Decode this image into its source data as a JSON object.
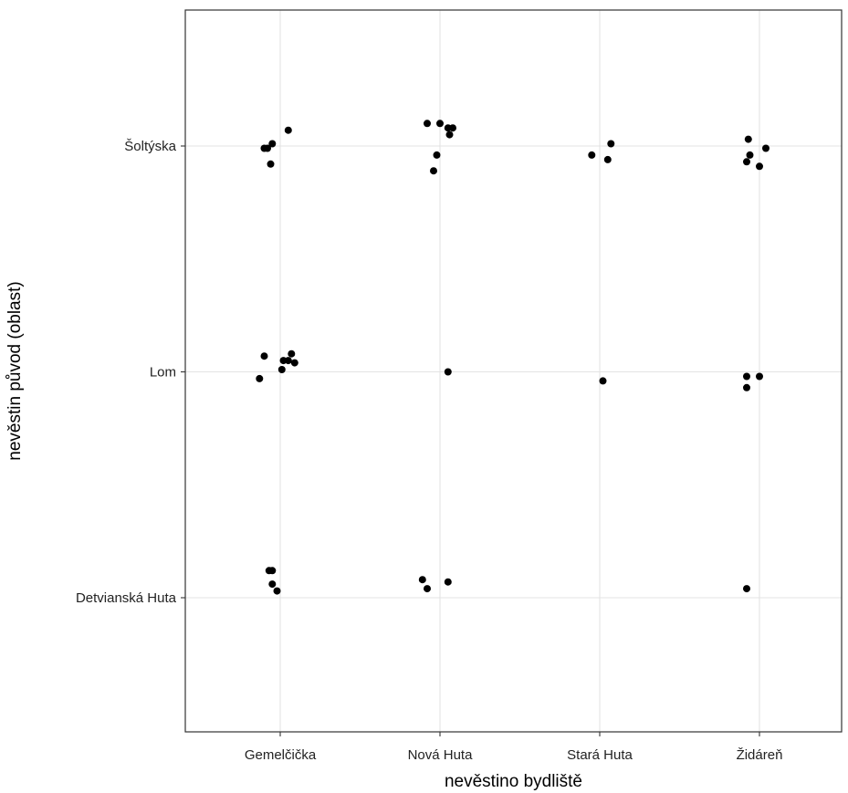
{
  "chart_data": {
    "type": "scatter",
    "title": "",
    "xlabel": "nevěstino bydliště",
    "ylabel": "nevěstin původ (oblast)",
    "x_categories": [
      "Gemelčička",
      "Nová Huta",
      "Stará Huta",
      "Židáreň"
    ],
    "y_categories": [
      "Detvianská Huta",
      "Lom",
      "Šoltýska"
    ],
    "grid": true,
    "legend": "none",
    "jitter": true,
    "point_color": "#000000",
    "points": [
      {
        "x": "Gemelčička",
        "y": "Šoltýska",
        "dx": 0.05,
        "dy": 0.07
      },
      {
        "x": "Gemelčička",
        "y": "Šoltýska",
        "dx": -0.05,
        "dy": 0.01
      },
      {
        "x": "Gemelčička",
        "y": "Šoltýska",
        "dx": -0.08,
        "dy": -0.01
      },
      {
        "x": "Gemelčička",
        "y": "Šoltýska",
        "dx": -0.1,
        "dy": -0.01
      },
      {
        "x": "Gemelčička",
        "y": "Šoltýska",
        "dx": -0.06,
        "dy": -0.08
      },
      {
        "x": "Nová Huta",
        "y": "Šoltýska",
        "dx": -0.08,
        "dy": 0.1
      },
      {
        "x": "Nová Huta",
        "y": "Šoltýska",
        "dx": 0.0,
        "dy": 0.1
      },
      {
        "x": "Nová Huta",
        "y": "Šoltýska",
        "dx": 0.05,
        "dy": 0.08
      },
      {
        "x": "Nová Huta",
        "y": "Šoltýska",
        "dx": 0.08,
        "dy": 0.08
      },
      {
        "x": "Nová Huta",
        "y": "Šoltýska",
        "dx": 0.06,
        "dy": 0.05
      },
      {
        "x": "Nová Huta",
        "y": "Šoltýska",
        "dx": -0.02,
        "dy": -0.04
      },
      {
        "x": "Nová Huta",
        "y": "Šoltýska",
        "dx": -0.04,
        "dy": -0.11
      },
      {
        "x": "Stará Huta",
        "y": "Šoltýska",
        "dx": 0.07,
        "dy": 0.01
      },
      {
        "x": "Stará Huta",
        "y": "Šoltýska",
        "dx": -0.05,
        "dy": -0.04
      },
      {
        "x": "Stará Huta",
        "y": "Šoltýska",
        "dx": 0.05,
        "dy": -0.06
      },
      {
        "x": "Židáreň",
        "y": "Šoltýska",
        "dx": -0.07,
        "dy": 0.03
      },
      {
        "x": "Židáreň",
        "y": "Šoltýska",
        "dx": 0.04,
        "dy": -0.01
      },
      {
        "x": "Židáreň",
        "y": "Šoltýska",
        "dx": -0.06,
        "dy": -0.04
      },
      {
        "x": "Židáreň",
        "y": "Šoltýska",
        "dx": -0.08,
        "dy": -0.07
      },
      {
        "x": "Židáreň",
        "y": "Šoltýska",
        "dx": 0.0,
        "dy": -0.09
      },
      {
        "x": "Gemelčička",
        "y": "Lom",
        "dx": -0.1,
        "dy": 0.07
      },
      {
        "x": "Gemelčička",
        "y": "Lom",
        "dx": 0.07,
        "dy": 0.08
      },
      {
        "x": "Gemelčička",
        "y": "Lom",
        "dx": 0.02,
        "dy": 0.05
      },
      {
        "x": "Gemelčička",
        "y": "Lom",
        "dx": 0.05,
        "dy": 0.05
      },
      {
        "x": "Gemelčička",
        "y": "Lom",
        "dx": 0.09,
        "dy": 0.04
      },
      {
        "x": "Gemelčička",
        "y": "Lom",
        "dx": 0.01,
        "dy": 0.01
      },
      {
        "x": "Gemelčička",
        "y": "Lom",
        "dx": -0.13,
        "dy": -0.03
      },
      {
        "x": "Nová Huta",
        "y": "Lom",
        "dx": 0.05,
        "dy": 0.0
      },
      {
        "x": "Stará Huta",
        "y": "Lom",
        "dx": 0.02,
        "dy": -0.04
      },
      {
        "x": "Židáreň",
        "y": "Lom",
        "dx": -0.08,
        "dy": -0.02
      },
      {
        "x": "Židáreň",
        "y": "Lom",
        "dx": 0.0,
        "dy": -0.02
      },
      {
        "x": "Židáreň",
        "y": "Lom",
        "dx": -0.08,
        "dy": -0.07
      },
      {
        "x": "Gemelčička",
        "y": "Detvianská Huta",
        "dx": -0.07,
        "dy": 0.12
      },
      {
        "x": "Gemelčička",
        "y": "Detvianská Huta",
        "dx": -0.05,
        "dy": 0.12
      },
      {
        "x": "Gemelčička",
        "y": "Detvianská Huta",
        "dx": -0.05,
        "dy": 0.06
      },
      {
        "x": "Gemelčička",
        "y": "Detvianská Huta",
        "dx": -0.02,
        "dy": 0.03
      },
      {
        "x": "Nová Huta",
        "y": "Detvianská Huta",
        "dx": -0.11,
        "dy": 0.08
      },
      {
        "x": "Nová Huta",
        "y": "Detvianská Huta",
        "dx": 0.05,
        "dy": 0.07
      },
      {
        "x": "Nová Huta",
        "y": "Detvianská Huta",
        "dx": -0.08,
        "dy": 0.04
      },
      {
        "x": "Židáreň",
        "y": "Detvianská Huta",
        "dx": -0.08,
        "dy": 0.04
      }
    ]
  }
}
